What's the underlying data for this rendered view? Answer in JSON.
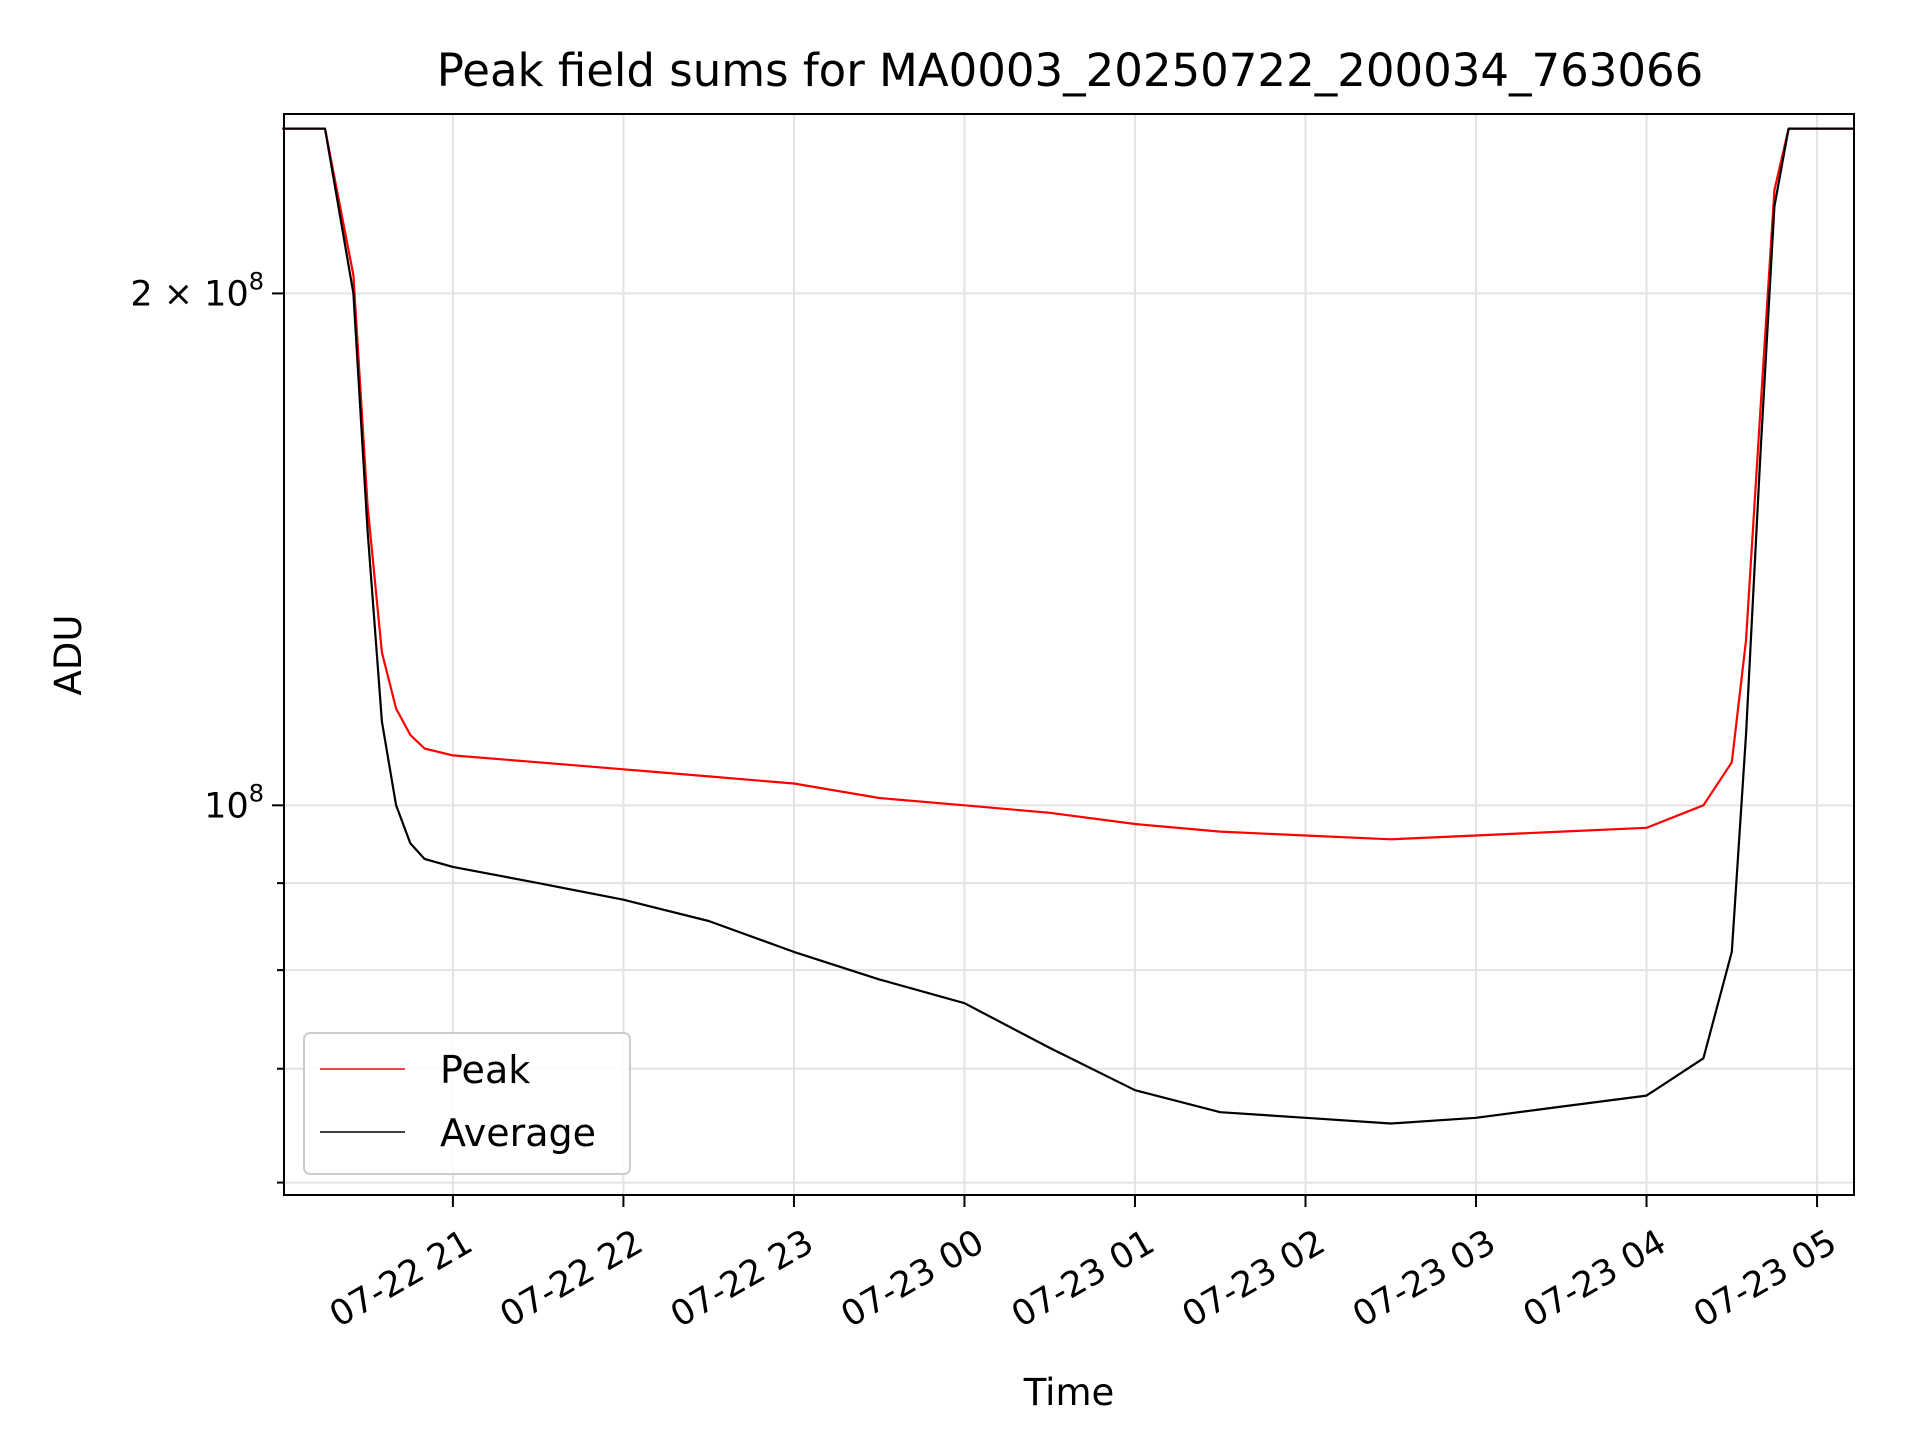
{
  "chart_data": {
    "type": "line",
    "title": "Peak field sums for MA0003_20250722_200034_763066",
    "xlabel": "Time",
    "ylabel": "ADU",
    "yscale": "log",
    "ylim": [
      59000000,
      255000000
    ],
    "xlim": [
      "2025-07-22 20:00:34",
      "2025-07-23 05:13:00"
    ],
    "x_ticks": [
      {
        "t": "2025-07-22 21:00",
        "label": "07-22 21"
      },
      {
        "t": "2025-07-22 22:00",
        "label": "07-22 22"
      },
      {
        "t": "2025-07-22 23:00",
        "label": "07-22 23"
      },
      {
        "t": "2025-07-23 00:00",
        "label": "07-23 00"
      },
      {
        "t": "2025-07-23 01:00",
        "label": "07-23 01"
      },
      {
        "t": "2025-07-23 02:00",
        "label": "07-23 02"
      },
      {
        "t": "2025-07-23 03:00",
        "label": "07-23 03"
      },
      {
        "t": "2025-07-23 04:00",
        "label": "07-23 04"
      },
      {
        "t": "2025-07-23 05:00",
        "label": "07-23 05"
      }
    ],
    "y_major_ticks": [
      {
        "value": 100000000,
        "base": "10",
        "exp": "8"
      },
      {
        "value": 200000000,
        "base": "2 × 10",
        "exp": "8"
      }
    ],
    "y_minor_ticks": [
      60000000,
      70000000,
      80000000,
      90000000
    ],
    "grid": true,
    "legend_position": "lower-left",
    "series": [
      {
        "name": "Peak",
        "color": "#ff0000",
        "x": [
          "2025-07-22 20:00",
          "2025-07-22 20:15",
          "2025-07-22 20:25",
          "2025-07-22 20:30",
          "2025-07-22 20:35",
          "2025-07-22 20:40",
          "2025-07-22 20:45",
          "2025-07-22 20:50",
          "2025-07-22 21:00",
          "2025-07-22 21:30",
          "2025-07-22 22:00",
          "2025-07-22 22:30",
          "2025-07-22 23:00",
          "2025-07-22 23:30",
          "2025-07-23 00:00",
          "2025-07-23 00:30",
          "2025-07-23 01:00",
          "2025-07-23 01:30",
          "2025-07-23 02:00",
          "2025-07-23 02:30",
          "2025-07-23 03:00",
          "2025-07-23 03:30",
          "2025-07-23 04:00",
          "2025-07-23 04:20",
          "2025-07-23 04:30",
          "2025-07-23 04:35",
          "2025-07-23 04:40",
          "2025-07-23 04:45",
          "2025-07-23 04:50",
          "2025-07-23 05:00",
          "2025-07-23 05:13"
        ],
        "values": [
          250000000,
          250000000,
          205000000,
          150000000,
          123000000,
          114000000,
          110000000,
          108000000,
          107000000,
          106000000,
          105000000,
          104000000,
          103000000,
          101000000,
          100000000,
          99000000,
          97500000,
          96500000,
          96000000,
          95500000,
          96000000,
          96500000,
          97000000,
          100000000,
          106000000,
          125000000,
          170000000,
          230000000,
          250000000,
          250000000,
          250000000
        ]
      },
      {
        "name": "Average",
        "color": "#000000",
        "x": [
          "2025-07-22 20:00",
          "2025-07-22 20:15",
          "2025-07-22 20:25",
          "2025-07-22 20:30",
          "2025-07-22 20:35",
          "2025-07-22 20:40",
          "2025-07-22 20:45",
          "2025-07-22 20:50",
          "2025-07-22 21:00",
          "2025-07-22 21:30",
          "2025-07-22 22:00",
          "2025-07-22 22:30",
          "2025-07-22 23:00",
          "2025-07-22 23:30",
          "2025-07-23 00:00",
          "2025-07-23 00:30",
          "2025-07-23 01:00",
          "2025-07-23 01:30",
          "2025-07-23 02:00",
          "2025-07-23 02:30",
          "2025-07-23 03:00",
          "2025-07-23 03:30",
          "2025-07-23 04:00",
          "2025-07-23 04:20",
          "2025-07-23 04:30",
          "2025-07-23 04:35",
          "2025-07-23 04:40",
          "2025-07-23 04:45",
          "2025-07-23 04:50",
          "2025-07-23 05:00",
          "2025-07-23 05:13"
        ],
        "values": [
          250000000,
          250000000,
          200000000,
          145000000,
          112000000,
          100000000,
          95000000,
          93000000,
          92000000,
          90000000,
          88000000,
          85500000,
          82000000,
          79000000,
          76500000,
          72000000,
          68000000,
          66000000,
          65500000,
          65000000,
          65500000,
          66500000,
          67500000,
          71000000,
          82000000,
          110000000,
          160000000,
          225000000,
          250000000,
          250000000,
          250000000
        ]
      }
    ]
  }
}
